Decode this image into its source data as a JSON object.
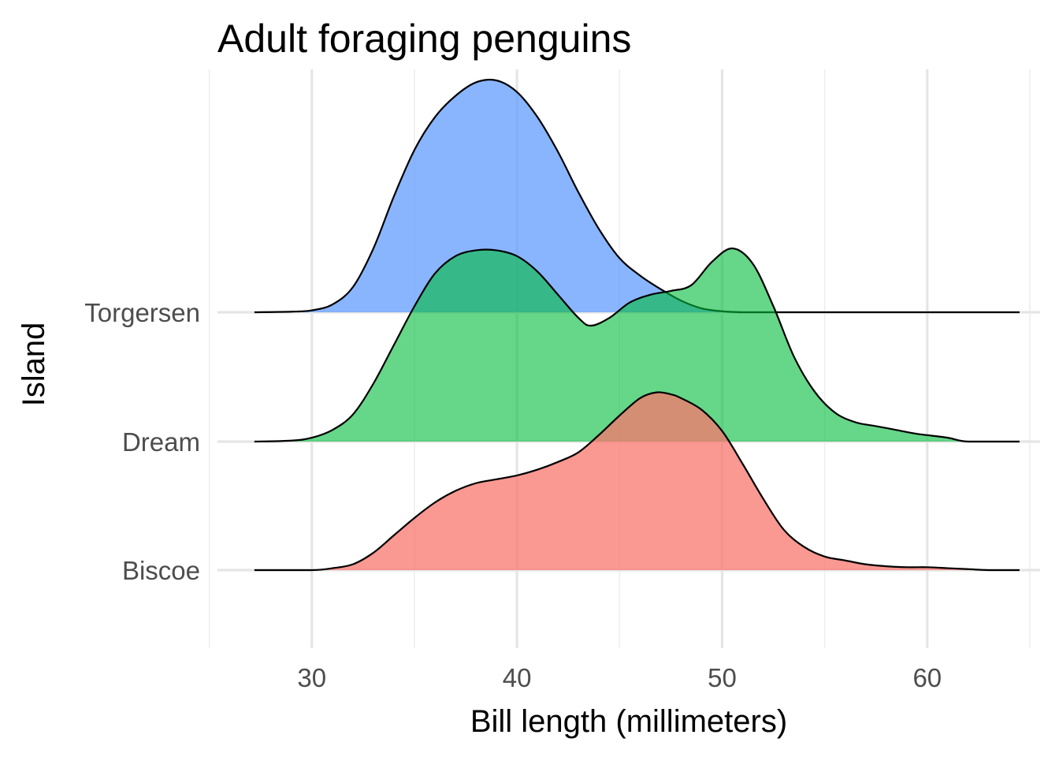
{
  "chart_data": {
    "type": "ridgeline",
    "title": "Adult foraging penguins",
    "xlabel": "Bill length (millimeters)",
    "ylabel": "Island",
    "xlim": [
      25.4,
      65.5
    ],
    "x_ticks": [
      30,
      40,
      50,
      60
    ],
    "x_minor_ticks": [
      25,
      35,
      45,
      55,
      65
    ],
    "x_range": [
      27.2,
      64.5
    ],
    "categories": [
      "Biscoe",
      "Dream",
      "Torgersen"
    ],
    "grid": true,
    "series": [
      {
        "name": "Biscoe",
        "color": "#F8766D",
        "opacity": 0.75,
        "x": [
          27.2,
          30,
          31,
          32,
          33,
          34,
          35,
          36,
          37,
          38,
          39,
          40,
          41,
          42,
          43,
          44,
          45,
          46,
          46.8,
          47.5,
          48,
          49,
          50,
          51,
          52,
          53,
          54,
          55,
          56,
          57,
          58,
          59,
          60,
          61,
          62,
          63,
          64.5
        ],
        "density": [
          0.0,
          0.0,
          0.01,
          0.03,
          0.09,
          0.18,
          0.27,
          0.35,
          0.41,
          0.45,
          0.47,
          0.49,
          0.52,
          0.56,
          0.61,
          0.7,
          0.8,
          0.89,
          0.92,
          0.91,
          0.89,
          0.83,
          0.72,
          0.55,
          0.37,
          0.21,
          0.12,
          0.07,
          0.05,
          0.03,
          0.02,
          0.015,
          0.015,
          0.01,
          0.005,
          0.0,
          0.0
        ]
      },
      {
        "name": "Dream",
        "color": "#00BA38",
        "opacity": 0.6,
        "x": [
          27.2,
          29,
          30,
          31,
          32,
          33,
          34,
          35,
          36,
          37,
          38,
          39,
          40,
          41,
          42,
          43,
          43.6,
          44.5,
          45.5,
          46.5,
          47.5,
          48.5,
          49.5,
          50.5,
          51.5,
          52.5,
          53.5,
          54.5,
          55.5,
          56.5,
          57.5,
          58.5,
          59.5,
          61,
          62,
          64.5
        ],
        "density": [
          0.0,
          0.005,
          0.02,
          0.06,
          0.14,
          0.3,
          0.5,
          0.7,
          0.87,
          0.96,
          0.99,
          0.99,
          0.96,
          0.88,
          0.76,
          0.64,
          0.6,
          0.64,
          0.72,
          0.76,
          0.78,
          0.81,
          0.93,
          1.0,
          0.92,
          0.7,
          0.44,
          0.26,
          0.15,
          0.1,
          0.08,
          0.06,
          0.04,
          0.02,
          0.0,
          0.0
        ]
      },
      {
        "name": "Torgersen",
        "color": "#619CFF",
        "opacity": 0.75,
        "x": [
          27.2,
          29,
          30,
          31,
          32,
          33,
          34,
          35,
          36,
          37,
          38,
          39,
          40,
          41,
          42,
          43,
          44,
          45,
          46,
          47,
          48,
          49,
          50,
          51,
          52,
          64.5
        ],
        "density": [
          0.0,
          0.003,
          0.01,
          0.04,
          0.13,
          0.33,
          0.6,
          0.84,
          1.01,
          1.12,
          1.19,
          1.2,
          1.14,
          1.01,
          0.83,
          0.62,
          0.43,
          0.28,
          0.19,
          0.12,
          0.06,
          0.02,
          0.005,
          0.0,
          0.0,
          0.0
        ]
      }
    ]
  }
}
